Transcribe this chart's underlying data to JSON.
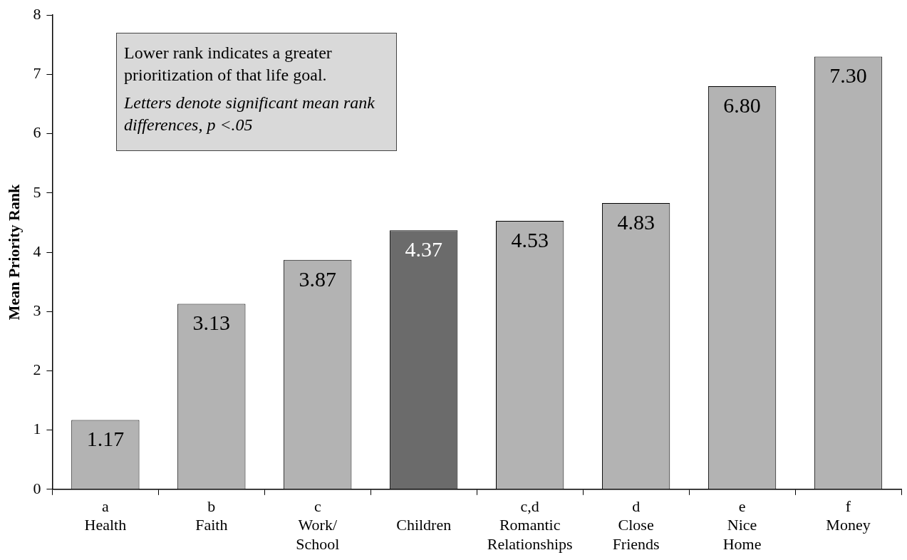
{
  "chart_data": {
    "type": "bar",
    "ylabel": "Mean Priority Rank",
    "categories": [
      "a\nHealth",
      "b\nFaith",
      "c\nWork/\nSchool",
      "\nChildren",
      "c,d\nRomantic\nRelationships",
      "d\nClose\nFriends",
      "e\nNice\nHome",
      "f\nMoney"
    ],
    "values": [
      1.17,
      3.13,
      3.87,
      4.37,
      4.53,
      4.83,
      6.8,
      7.3
    ],
    "value_labels": [
      "1.17",
      "3.13",
      "3.87",
      "4.37",
      "4.53",
      "4.83",
      "6.80",
      "7.30"
    ],
    "colors": [
      "#b3b3b3",
      "#b3b3b3",
      "#b3b3b3",
      "#6b6b6b",
      "#b3b3b3",
      "#b3b3b3",
      "#b3b3b3",
      "#b3b3b3"
    ],
    "ylim": [
      0,
      8
    ],
    "yticks": [
      0,
      1,
      2,
      3,
      4,
      5,
      6,
      7,
      8
    ],
    "grid": false,
    "legend": false,
    "annotations": [
      "Lower rank indicates a greater prioritization of that life goal.",
      "Letters denote significant mean rank differences, p <.05"
    ]
  }
}
